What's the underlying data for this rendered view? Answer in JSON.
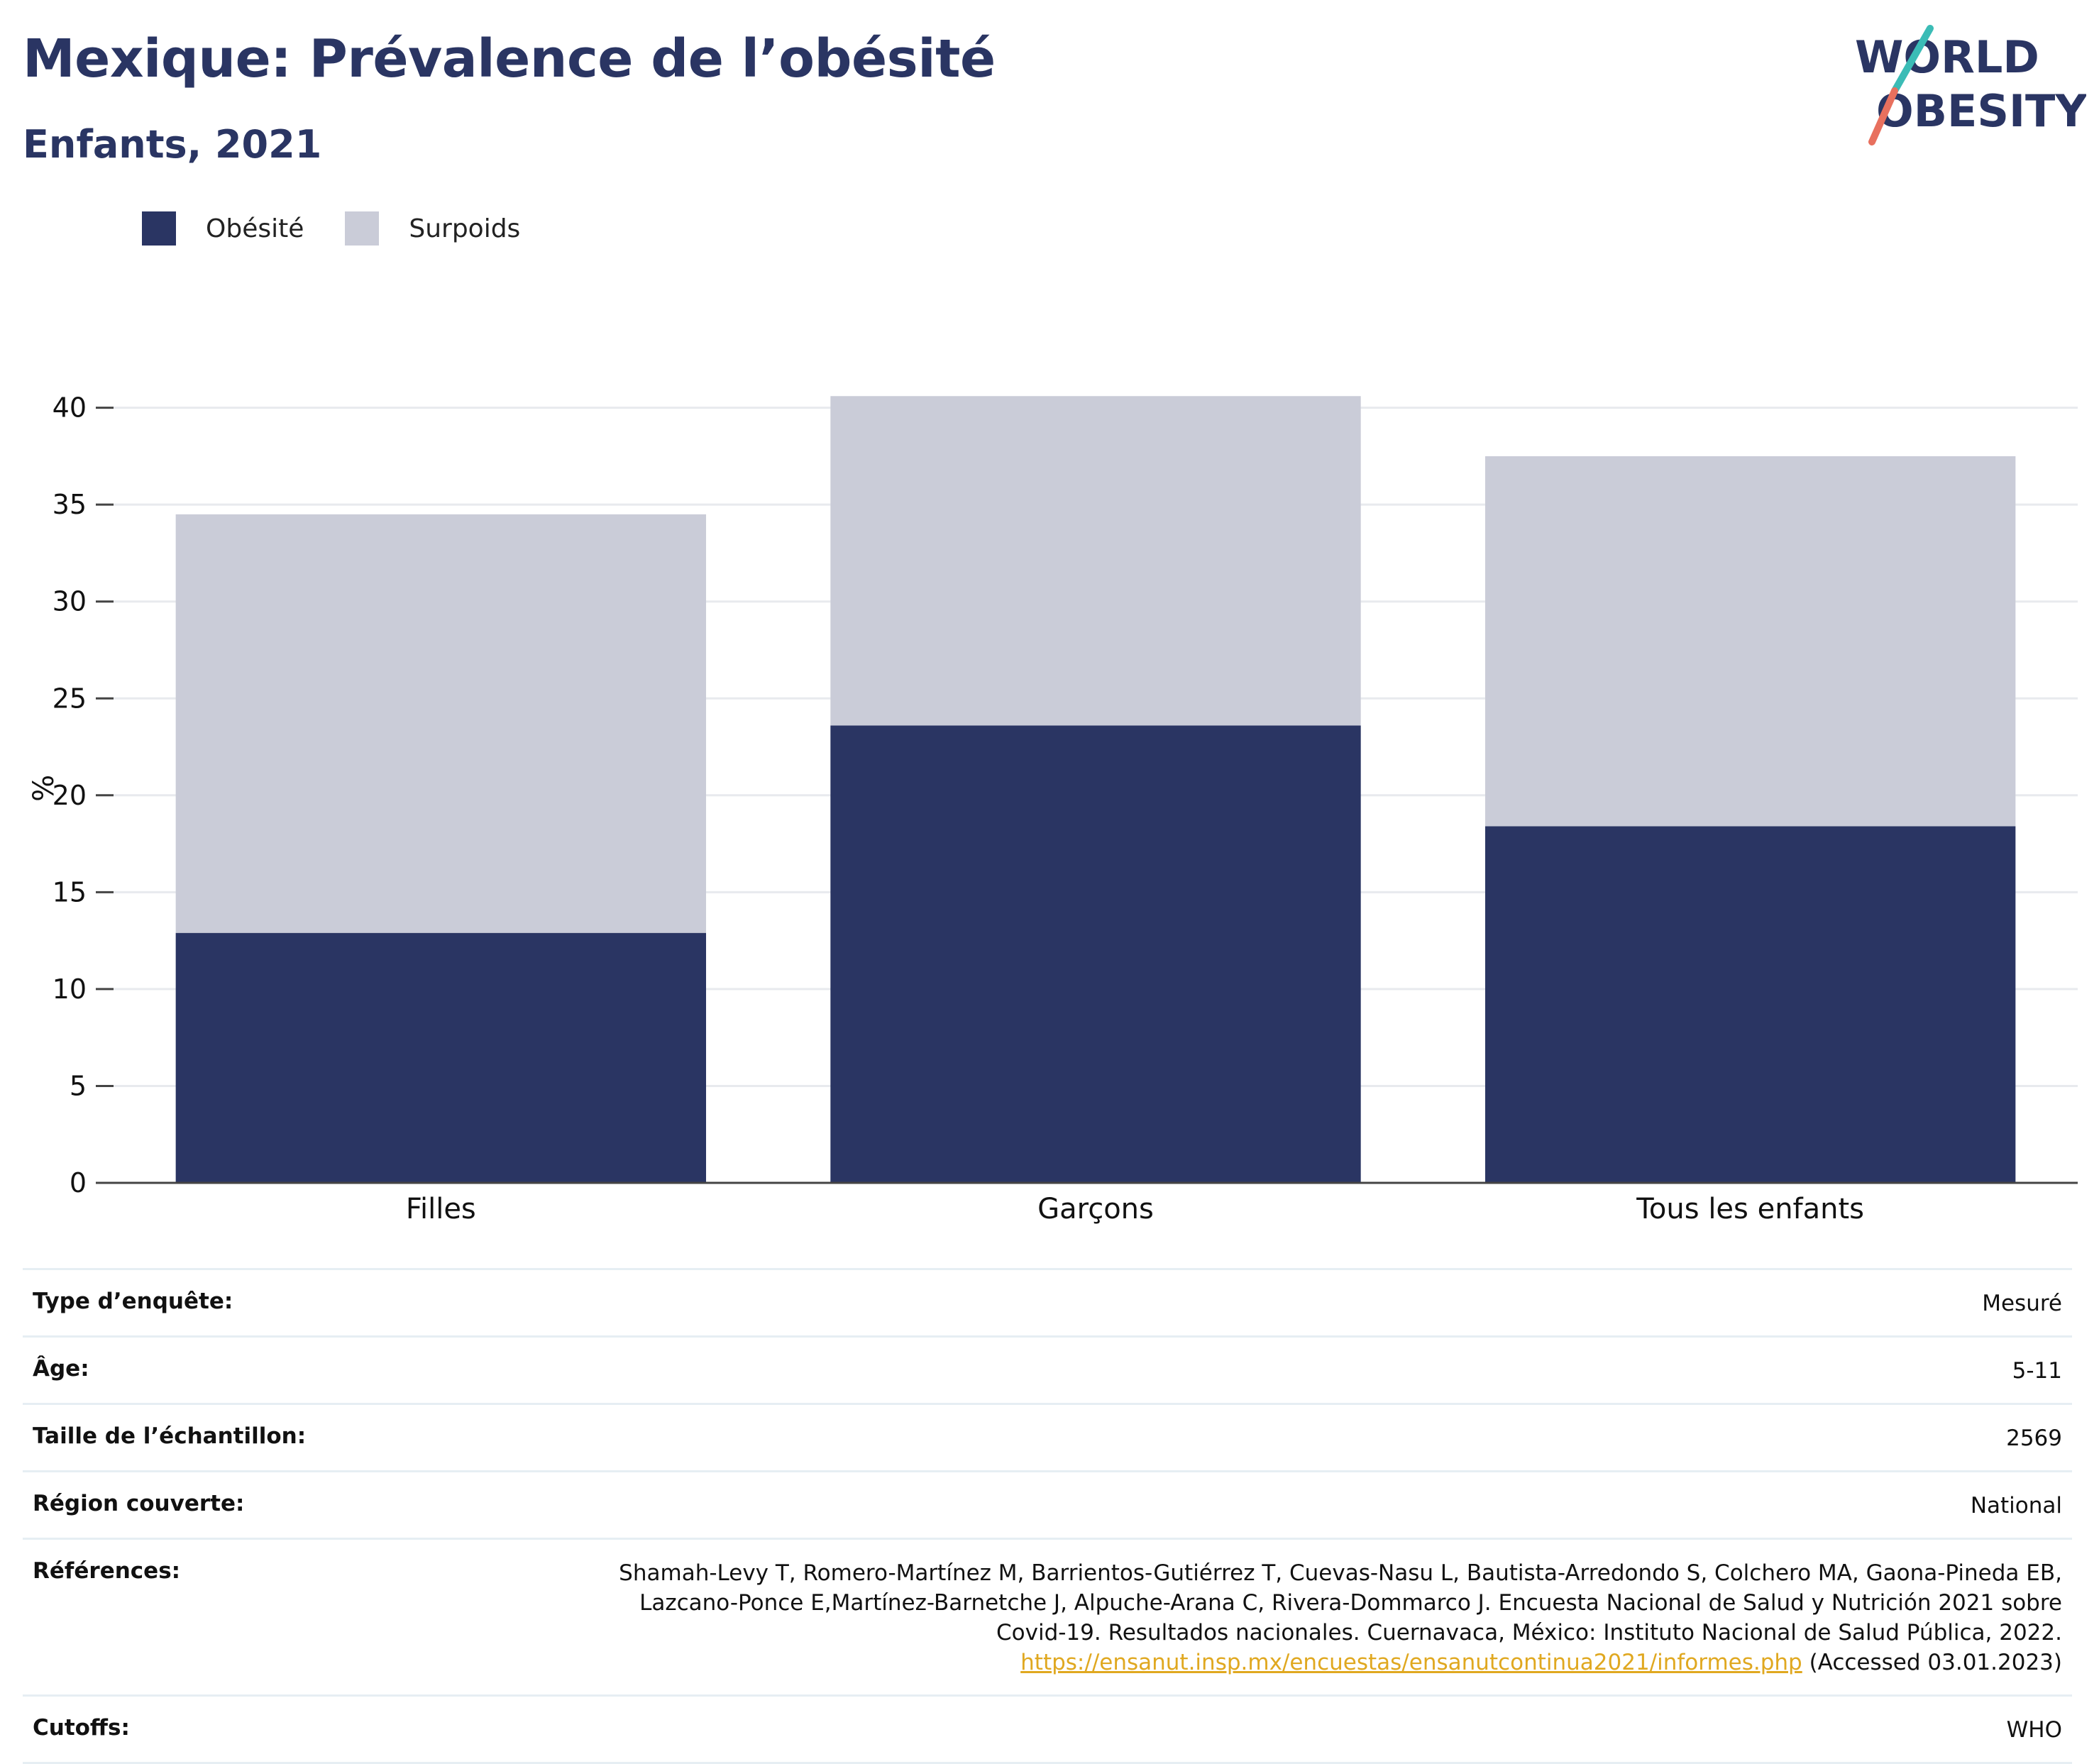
{
  "title": "Mexique: Prévalence de l’obésité",
  "subtitle": "Enfants, 2021",
  "logo": {
    "line1": "WORLD",
    "line2": "OBESITY"
  },
  "colors": {
    "obesite": "#2a3563",
    "surpoids": "#caccd8",
    "title": "#2a3563",
    "grid": "#e8eaee",
    "link": "#e0a820",
    "logo_teal": "#3bbcb6",
    "logo_coral": "#e8705e"
  },
  "legend": {
    "obesite": "Obésité",
    "surpoids": "Surpoids"
  },
  "chart_data": {
    "type": "bar",
    "stacked": true,
    "categories": [
      "Filles",
      "Garçons",
      "Tous les enfants"
    ],
    "series": [
      {
        "name": "Obésité",
        "values": [
          12.9,
          23.6,
          18.4
        ]
      },
      {
        "name": "Surpoids",
        "values": [
          21.6,
          17.0,
          19.1
        ]
      }
    ],
    "ylabel": "%",
    "ylim": [
      0,
      42
    ],
    "yticks": [
      0,
      5,
      10,
      15,
      20,
      25,
      30,
      35,
      40
    ],
    "grid": true,
    "legend_position": "top-left"
  },
  "info": {
    "survey_type": {
      "label": "Type d’enquête:",
      "value": "Mesuré"
    },
    "age": {
      "label": "Âge:",
      "value": "5-11"
    },
    "sample_size": {
      "label": "Taille de l’échantillon:",
      "value": "2569"
    },
    "region": {
      "label": "Région couverte:",
      "value": "National"
    },
    "references": {
      "label": "Références:",
      "line1": "Shamah-Levy T, Romero-Martínez M, Barrientos-Gutiérrez T, Cuevas-Nasu L, Bautista-Arredondo S, Colchero MA, Gaona-Pineda EB,",
      "line2": "Lazcano-Ponce E,Martínez-Barnetche J, Alpuche-Arana C, Rivera-Dommarco J. Encuesta Nacional de Salud y Nutrición 2021 sobre",
      "line3": "Covid-19. Resultados nacionales. Cuernavaca, México: Instituto Nacional de Salud Pública, 2022.",
      "link": "https://ensanut.insp.mx/encuestas/ensanutcontinua2021/informes.php",
      "accessed": " (Accessed 03.01.2023)"
    },
    "cutoffs": {
      "label": "Cutoffs:",
      "value": "WHO"
    }
  }
}
